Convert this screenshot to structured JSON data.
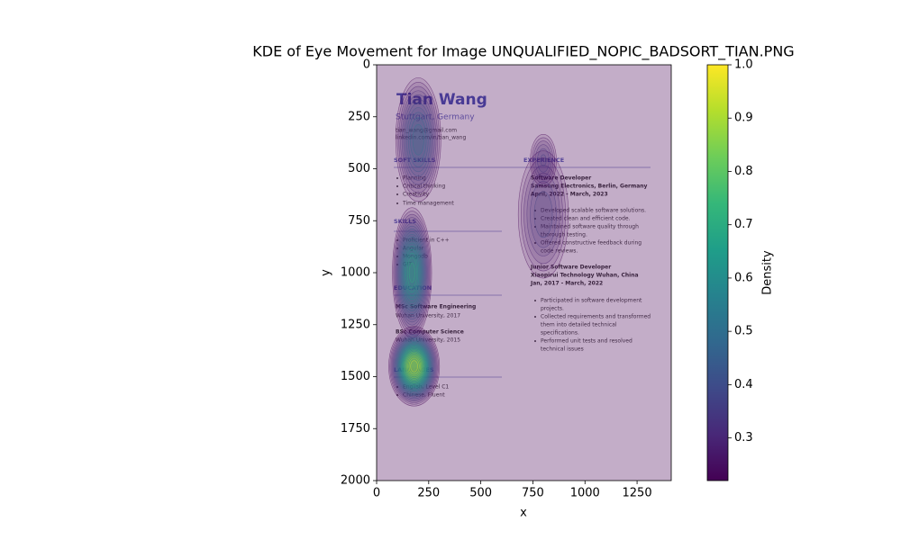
{
  "chart_data": {
    "type": "kde",
    "title": "KDE of Eye Movement for Image UNQUALIFIED_NOPIC_BADSORT_TIAN.PNG",
    "xlabel": "x",
    "ylabel": "y",
    "xlim": [
      0,
      1414
    ],
    "ylim": [
      0,
      2000
    ],
    "y_inverted": true,
    "xticks": [
      0,
      250,
      500,
      750,
      1000,
      1250
    ],
    "yticks": [
      0,
      250,
      500,
      750,
      1000,
      1250,
      1500,
      1750,
      2000
    ],
    "colormap": "viridis",
    "colorbar_label": "Density",
    "clim": [
      0.22,
      1.0
    ],
    "cticks": [
      0.3,
      0.4,
      0.5,
      0.6,
      0.7,
      0.8,
      0.9,
      {
        "value": 1.0,
        "label": "1.0"
      }
    ],
    "hotspots": [
      {
        "x": 200,
        "y": 360,
        "sx": 80,
        "sy": 220,
        "density": 0.55
      },
      {
        "x": 800,
        "y": 720,
        "sx": 110,
        "sy": 280,
        "density": 0.4
      },
      {
        "x": 800,
        "y": 460,
        "sx": 60,
        "sy": 120,
        "density": 0.38
      },
      {
        "x": 170,
        "y": 1000,
        "sx": 60,
        "sy": 200,
        "density": 0.75
      },
      {
        "x": 180,
        "y": 1450,
        "sx": 70,
        "sy": 110,
        "density": 1.0
      }
    ],
    "resume_text": [
      "Tian Wang",
      "Stuttgart, Germany",
      "tian_wang@gmail.com",
      "linkedin.com/in/tian_wang",
      "SOFT SKILLS",
      "Planning",
      "Critical thinking",
      "Creativity",
      "Time management",
      "SKILLS",
      "Proficient in C++",
      "Angular",
      "Mongodb",
      "GIT",
      "EDUCATION",
      "MSc Software Engineering",
      "Wuhan University, 2017",
      "BSc Computer Science",
      "Wuhan University, 2015",
      "LANGUAGES",
      "English, Level C1",
      "Chinese, Fluent",
      "EXPERIENCE",
      "Software Developer",
      "Samsung Electronics, Berlin, Germany",
      "April, 2022 - March, 2023",
      "Developed scalable software solutions.",
      "Created clean and efficient code.",
      "Maintained software quality through",
      "thorough testing.",
      "Offered constructive feedback during",
      "code reviews.",
      "Junior Software Developer",
      "Xiaopirui Technology Wuhan, China",
      "Jan, 2017 - March, 2022",
      "Participated in software development",
      "projects.",
      "Collected requirements and transformed",
      "them into detailed technical",
      "specifications.",
      "Performed unit tests and resolved",
      "technical issues"
    ]
  }
}
